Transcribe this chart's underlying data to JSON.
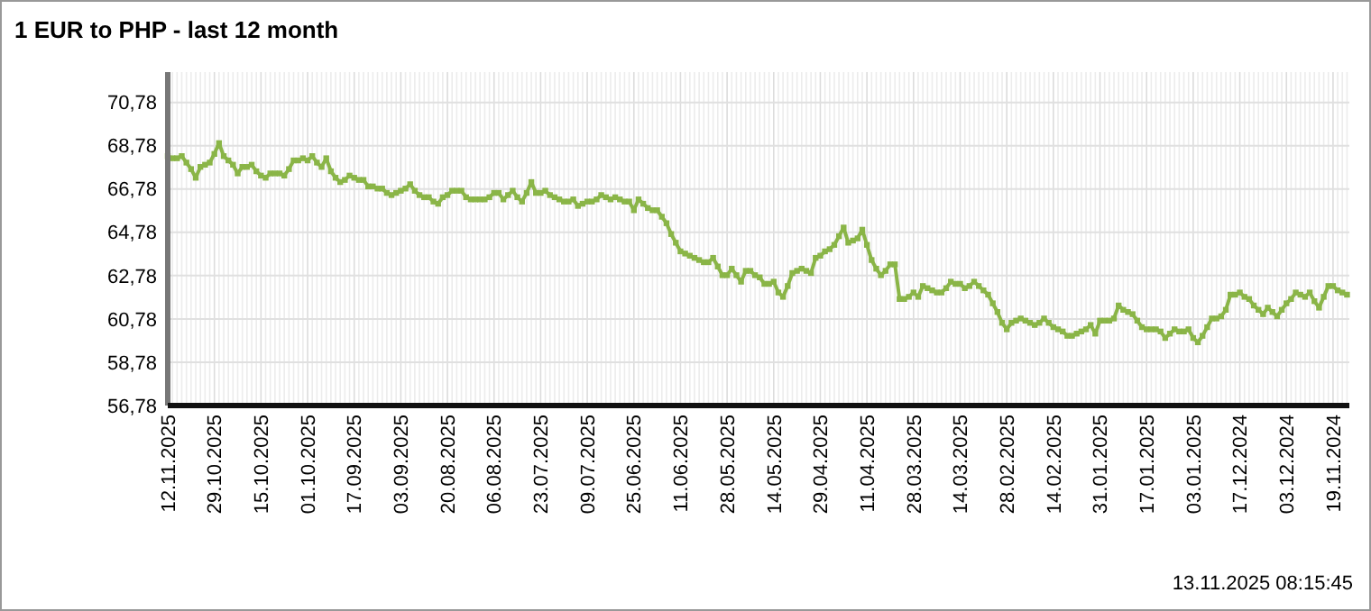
{
  "chart_data": {
    "type": "line",
    "title": "1 EUR to PHP - last 12 month",
    "annotations": [
      "13.11.2025 08:15:45"
    ],
    "categories": [
      "12.11.2025",
      null,
      null,
      null,
      null,
      null,
      null,
      null,
      null,
      null,
      "29.10.2025",
      null,
      null,
      null,
      null,
      null,
      null,
      null,
      null,
      null,
      "15.10.2025",
      null,
      null,
      null,
      null,
      null,
      null,
      null,
      null,
      null,
      "01.10.2025",
      null,
      null,
      null,
      null,
      null,
      null,
      null,
      null,
      null,
      "17.09.2025",
      null,
      null,
      null,
      null,
      null,
      null,
      null,
      null,
      null,
      "03.09.2025",
      null,
      null,
      null,
      null,
      null,
      null,
      null,
      null,
      null,
      "20.08.2025",
      null,
      null,
      null,
      null,
      null,
      null,
      null,
      null,
      null,
      "06.08.2025",
      null,
      null,
      null,
      null,
      null,
      null,
      null,
      null,
      null,
      "23.07.2025",
      null,
      null,
      null,
      null,
      null,
      null,
      null,
      null,
      null,
      "09.07.2025",
      null,
      null,
      null,
      null,
      null,
      null,
      null,
      null,
      null,
      "25.06.2025",
      null,
      null,
      null,
      null,
      null,
      null,
      null,
      null,
      null,
      "11.06.2025",
      null,
      null,
      null,
      null,
      null,
      null,
      null,
      null,
      null,
      "28.05.2025",
      null,
      null,
      null,
      null,
      null,
      null,
      null,
      null,
      null,
      "14.05.2025",
      null,
      null,
      null,
      null,
      null,
      null,
      null,
      null,
      null,
      "29.04.2025",
      null,
      null,
      null,
      null,
      null,
      null,
      null,
      null,
      null,
      "11.04.2025",
      null,
      null,
      null,
      null,
      null,
      null,
      null,
      null,
      null,
      "28.03.2025",
      null,
      null,
      null,
      null,
      null,
      null,
      null,
      null,
      null,
      "14.03.2025",
      null,
      null,
      null,
      null,
      null,
      null,
      null,
      null,
      null,
      "28.02.2025",
      null,
      null,
      null,
      null,
      null,
      null,
      null,
      null,
      null,
      "14.02.2025",
      null,
      null,
      null,
      null,
      null,
      null,
      null,
      null,
      null,
      "31.01.2025",
      null,
      null,
      null,
      null,
      null,
      null,
      null,
      null,
      null,
      "17.01.2025",
      null,
      null,
      null,
      null,
      null,
      null,
      null,
      null,
      null,
      "03.01.2025",
      null,
      null,
      null,
      null,
      null,
      null,
      null,
      null,
      null,
      "17.12.2024",
      null,
      null,
      null,
      null,
      null,
      null,
      null,
      null,
      null,
      "03.12.2024",
      null,
      null,
      null,
      null,
      null,
      null,
      null,
      null,
      null,
      "19.11.2024",
      null,
      null,
      null
    ],
    "ylim": [
      56.78,
      72.18
    ],
    "yticks": [
      {
        "value": 56.78,
        "label": "56,78"
      },
      {
        "value": 58.78,
        "label": "58,78"
      },
      {
        "value": 60.78,
        "label": "60,78"
      },
      {
        "value": 62.78,
        "label": "62,78"
      },
      {
        "value": 64.78,
        "label": "64,78"
      },
      {
        "value": 66.78,
        "label": "66,78"
      },
      {
        "value": 68.78,
        "label": "68,78"
      },
      {
        "value": 70.78,
        "label": "70,78"
      }
    ],
    "grid": true,
    "marker": "square",
    "line_style": "solid",
    "series": [
      {
        "color": "#8ab547",
        "values": [
          68.3,
          68.2,
          68.2,
          68.3,
          68.0,
          67.7,
          67.3,
          67.8,
          67.9,
          68.0,
          68.4,
          68.9,
          68.3,
          68.1,
          67.9,
          67.5,
          67.8,
          67.8,
          67.9,
          67.6,
          67.4,
          67.3,
          67.5,
          67.5,
          67.5,
          67.4,
          67.7,
          68.1,
          68.1,
          68.2,
          68.1,
          68.3,
          68.0,
          67.8,
          68.2,
          67.6,
          67.3,
          67.1,
          67.2,
          67.4,
          67.3,
          67.2,
          67.2,
          66.9,
          66.9,
          66.8,
          66.8,
          66.6,
          66.5,
          66.6,
          66.7,
          66.8,
          67.0,
          66.7,
          66.5,
          66.4,
          66.4,
          66.2,
          66.1,
          66.4,
          66.5,
          66.7,
          66.7,
          66.7,
          66.4,
          66.3,
          66.3,
          66.3,
          66.3,
          66.4,
          66.6,
          66.6,
          66.3,
          66.5,
          66.7,
          66.4,
          66.2,
          66.6,
          67.1,
          66.6,
          66.6,
          66.7,
          66.5,
          66.4,
          66.3,
          66.2,
          66.2,
          66.3,
          66.0,
          66.1,
          66.2,
          66.2,
          66.3,
          66.5,
          66.4,
          66.3,
          66.4,
          66.3,
          66.2,
          66.2,
          65.8,
          66.3,
          66.1,
          65.9,
          65.8,
          65.8,
          65.5,
          65.2,
          64.7,
          64.3,
          63.9,
          63.8,
          63.7,
          63.6,
          63.5,
          63.4,
          63.4,
          63.6,
          63.2,
          62.8,
          62.8,
          63.1,
          62.8,
          62.5,
          63.0,
          63.0,
          62.8,
          62.7,
          62.4,
          62.4,
          62.5,
          62.0,
          61.8,
          62.3,
          62.9,
          63.0,
          63.1,
          63.0,
          62.9,
          63.6,
          63.7,
          63.9,
          64.0,
          64.2,
          64.6,
          65.0,
          64.3,
          64.4,
          64.5,
          64.9,
          64.2,
          63.5,
          63.1,
          62.8,
          63.0,
          63.3,
          63.3,
          61.7,
          61.7,
          61.8,
          62.0,
          61.8,
          62.3,
          62.2,
          62.1,
          62.0,
          62.0,
          62.2,
          62.5,
          62.4,
          62.4,
          62.2,
          62.3,
          62.5,
          62.3,
          62.1,
          61.9,
          61.5,
          61.1,
          60.6,
          60.3,
          60.6,
          60.7,
          60.8,
          60.7,
          60.6,
          60.5,
          60.6,
          60.8,
          60.6,
          60.4,
          60.3,
          60.2,
          60.0,
          60.0,
          60.1,
          60.2,
          60.3,
          60.5,
          60.1,
          60.7,
          60.7,
          60.7,
          60.8,
          61.4,
          61.2,
          61.1,
          61.0,
          60.7,
          60.4,
          60.3,
          60.3,
          60.3,
          60.2,
          59.9,
          60.1,
          60.3,
          60.2,
          60.2,
          60.3,
          59.9,
          59.7,
          60.0,
          60.4,
          60.8,
          60.8,
          60.9,
          61.2,
          61.9,
          61.9,
          62.0,
          61.8,
          61.7,
          61.4,
          61.2,
          61.0,
          61.3,
          61.1,
          60.9,
          61.2,
          61.5,
          61.7,
          62.0,
          61.9,
          61.8,
          62.0,
          61.6,
          61.3,
          61.8,
          62.3,
          62.3,
          62.1,
          62.0,
          61.9
        ]
      }
    ]
  }
}
